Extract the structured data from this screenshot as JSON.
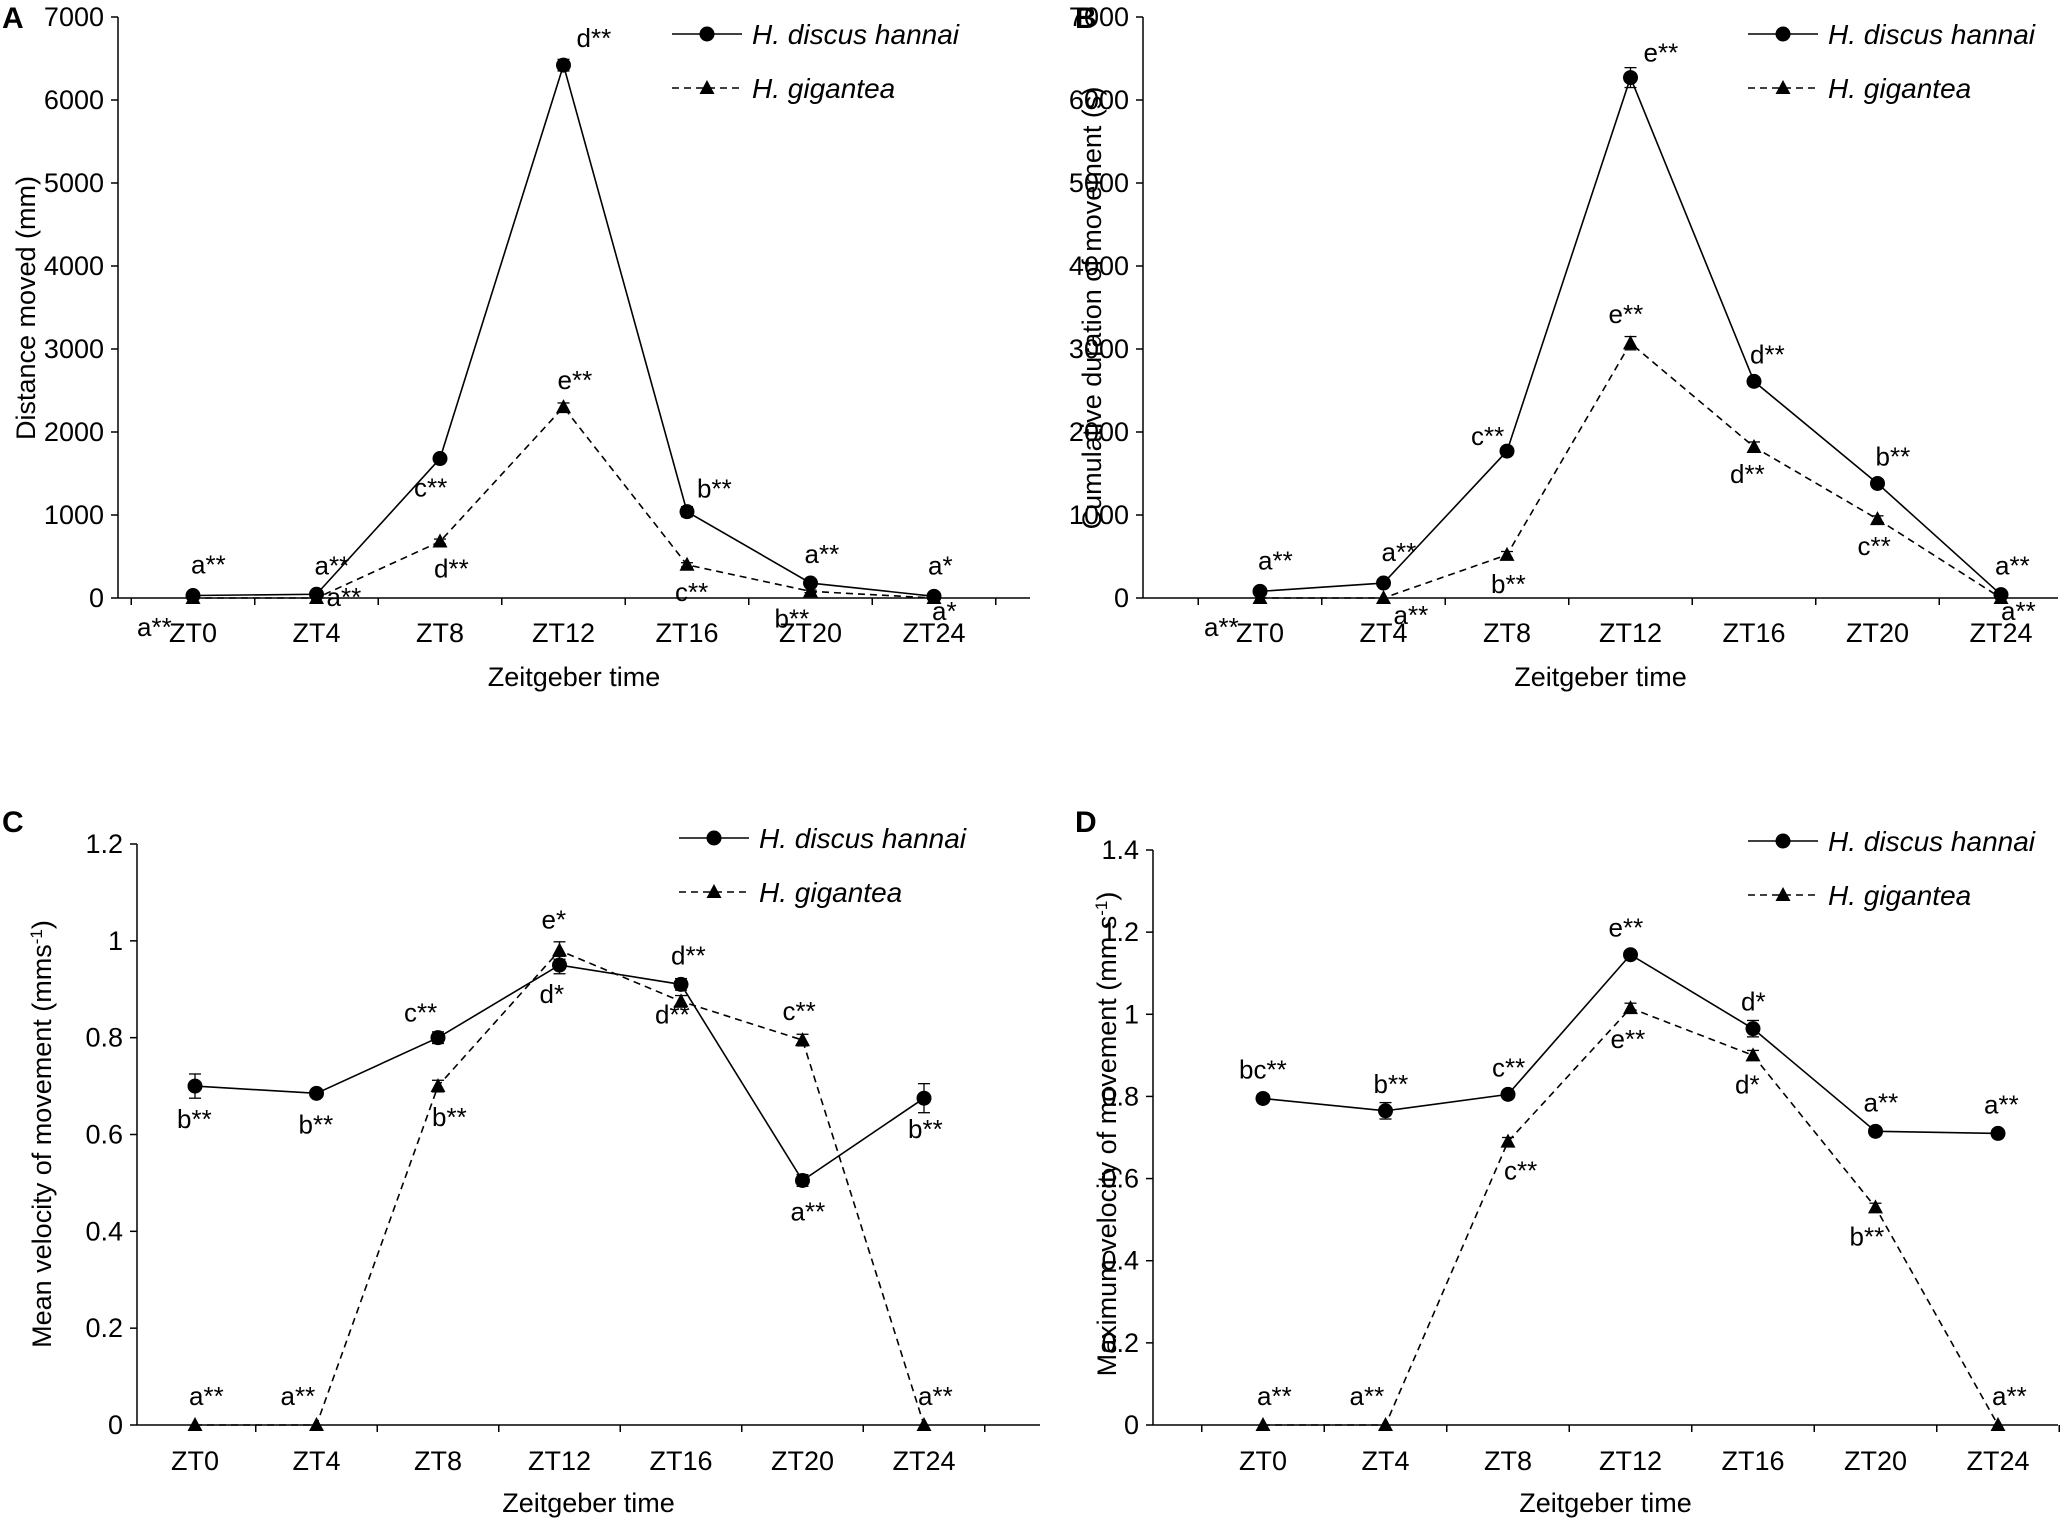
{
  "chart_data": [
    {
      "panel": "A",
      "type": "line",
      "xlabel": "Zeitgeber time",
      "ylabel": "Distance moved (mm)",
      "categories": [
        "ZT0",
        "ZT4",
        "ZT8",
        "ZT12",
        "ZT16",
        "ZT20",
        "ZT24"
      ],
      "ylim": [
        0,
        7000
      ],
      "yticks": [
        0,
        1000,
        2000,
        3000,
        4000,
        5000,
        6000,
        7000
      ],
      "ytick_labels": [
        "0",
        "1000",
        "2000",
        "3000",
        "4000",
        "5000",
        "6000",
        "7000"
      ],
      "legend": "top-right",
      "series": [
        {
          "name": "H. discus hannai",
          "marker": "circle",
          "style": "solid",
          "values": [
            30,
            45,
            1680,
            6420,
            1040,
            180,
            20
          ],
          "errors": [
            20,
            15,
            40,
            70,
            60,
            30,
            10
          ],
          "labels": [
            "a**",
            "a**",
            "c**",
            "d**",
            "b**",
            "a**",
            "a*"
          ]
        },
        {
          "name": "H. gigantea",
          "marker": "triangle",
          "style": "dashed",
          "values": [
            0,
            0,
            680,
            2300,
            400,
            80,
            0
          ],
          "errors": [
            0,
            0,
            30,
            50,
            25,
            15,
            0
          ],
          "labels": [
            "a**",
            "a**",
            "d**",
            "e**",
            "c**",
            "b**",
            "a*"
          ]
        }
      ]
    },
    {
      "panel": "B",
      "type": "line",
      "xlabel": "Zeitgeber time",
      "ylabel": "Cumulative duration of movement (s)",
      "categories": [
        "ZT0",
        "ZT4",
        "ZT8",
        "ZT12",
        "ZT16",
        "ZT20",
        "ZT24"
      ],
      "ylim": [
        0,
        7000
      ],
      "yticks": [
        0,
        1000,
        2000,
        3000,
        4000,
        5000,
        6000,
        7000
      ],
      "ytick_labels": [
        "0",
        "1000",
        "2000",
        "3000",
        "4000",
        "5000",
        "6000",
        "7000"
      ],
      "legend": "top-right",
      "series": [
        {
          "name": "H. discus hannai",
          "marker": "circle",
          "style": "solid",
          "values": [
            80,
            180,
            1770,
            6270,
            2610,
            1380,
            40
          ],
          "errors": [
            20,
            30,
            40,
            120,
            50,
            40,
            10
          ],
          "labels": [
            "a**",
            "a**",
            "c**",
            "e**",
            "d**",
            "b**",
            "a**"
          ]
        },
        {
          "name": "H. gigantea",
          "marker": "triangle",
          "style": "dashed",
          "values": [
            0,
            0,
            520,
            3070,
            1820,
            950,
            0
          ],
          "errors": [
            0,
            0,
            40,
            80,
            60,
            40,
            0
          ],
          "labels": [
            "a**",
            "a**",
            "b**",
            "e**",
            "d**",
            "c**",
            "a**"
          ]
        }
      ]
    },
    {
      "panel": "C",
      "type": "line",
      "xlabel": "Zeitgeber time",
      "ylabel": "Mean velocity of movement (mms",
      "ylabel_sup": "-1",
      "ylabel_end": ")",
      "categories": [
        "ZT0",
        "ZT4",
        "ZT8",
        "ZT12",
        "ZT16",
        "ZT20",
        "ZT24"
      ],
      "ylim": [
        0,
        1.2
      ],
      "yticks": [
        0,
        0.2,
        0.4,
        0.6,
        0.8,
        1.0,
        1.2
      ],
      "ytick_labels": [
        "0",
        "0.2",
        "0.4",
        "0.6",
        "0.8",
        "1",
        "1.2"
      ],
      "legend": "top-right",
      "series": [
        {
          "name": "H. discus hannai",
          "marker": "circle",
          "style": "solid",
          "values": [
            0.7,
            0.685,
            0.8,
            0.95,
            0.91,
            0.505,
            0.675
          ],
          "errors": [
            0.025,
            0.008,
            0.012,
            0.018,
            0.012,
            0.012,
            0.03
          ],
          "labels": [
            "b**",
            "b**",
            "c**",
            "d*",
            "d**",
            "a**",
            "b**"
          ]
        },
        {
          "name": "H. gigantea",
          "marker": "triangle",
          "style": "dashed",
          "values": [
            0,
            0,
            0.7,
            0.98,
            0.875,
            0.795,
            0
          ],
          "errors": [
            0,
            0,
            0.012,
            0.018,
            0.012,
            0.012,
            0
          ],
          "labels": [
            "a**",
            "a**",
            "b**",
            "e*",
            "d**",
            "c**",
            "a**"
          ]
        }
      ]
    },
    {
      "panel": "D",
      "type": "line",
      "xlabel": "Zeitgeber time",
      "ylabel": "Maximum velocity of movement (mm s",
      "ylabel_sup": "-1",
      "ylabel_end": ")",
      "categories": [
        "ZT0",
        "ZT4",
        "ZT8",
        "ZT12",
        "ZT16",
        "ZT20",
        "ZT24"
      ],
      "ylim": [
        0,
        1.4
      ],
      "yticks": [
        0,
        0.2,
        0.4,
        0.6,
        0.8,
        1.0,
        1.2,
        1.4
      ],
      "ytick_labels": [
        "0",
        "0.2",
        "0.4",
        "0.6",
        "0.8",
        "1",
        "1.2",
        "1.4"
      ],
      "legend": "top-right",
      "series": [
        {
          "name": "H. discus hannai",
          "marker": "circle",
          "style": "solid",
          "values": [
            0.795,
            0.765,
            0.805,
            1.145,
            0.965,
            0.715,
            0.71
          ],
          "errors": [
            0.01,
            0.02,
            0.01,
            0.01,
            0.02,
            0.01,
            0.01
          ],
          "labels": [
            "bc**",
            "b**",
            "c**",
            "e**",
            "d*",
            "a**",
            "a**"
          ]
        },
        {
          "name": "H. gigantea",
          "marker": "triangle",
          "style": "dashed",
          "values": [
            0,
            0,
            0.69,
            1.015,
            0.9,
            0.53,
            0
          ],
          "errors": [
            0,
            0,
            0.01,
            0.012,
            0.012,
            0.01,
            0
          ],
          "labels": [
            "a**",
            "a**",
            "c**",
            "e**",
            "d*",
            "b**",
            "a**"
          ]
        }
      ]
    }
  ]
}
